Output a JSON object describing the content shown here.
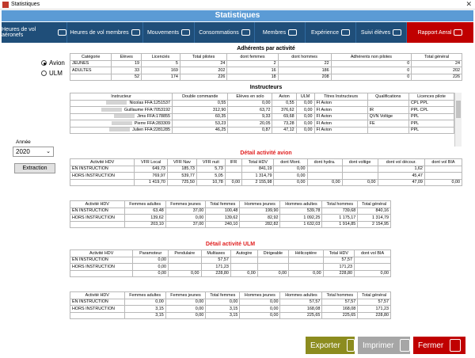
{
  "window": {
    "title": "Statistiques",
    "banner": "Statistiques"
  },
  "nav": [
    {
      "label": "Heures de vol aéronefs",
      "icon": "airplane-icon"
    },
    {
      "label": "Heures de vol membres",
      "icon": "pilot-cap-icon"
    },
    {
      "label": "Mouvements",
      "icon": "takeoff-icon"
    },
    {
      "label": "Consommations",
      "icon": "fuel-icon"
    },
    {
      "label": "Membres",
      "icon": "members-icon"
    },
    {
      "label": "Expérience",
      "icon": "boot-icon"
    },
    {
      "label": "Suivi élèves",
      "icon": "student-icon"
    },
    {
      "label": "Rapport Aeral",
      "icon": "report-icon"
    }
  ],
  "left": {
    "radio_avion": "Avion",
    "radio_ulm": "ULM",
    "year_label": "Année",
    "year_value": "2020",
    "extract_label": "Extraction"
  },
  "adherents": {
    "title": "Adhérents par activité",
    "headers": [
      "Catégorie",
      "Elèves",
      "Licenciés",
      "Total pilotes",
      "dont femmes",
      "dont hommes",
      "Adhérents non pilotes",
      "Total général"
    ],
    "rows": [
      [
        "JEUNES",
        "19",
        "5",
        "24",
        "2",
        "22",
        "0",
        "24"
      ],
      [
        "ADULTES",
        "33",
        "169",
        "202",
        "16",
        "186",
        "0",
        "202"
      ],
      [
        "",
        "52",
        "174",
        "226",
        "18",
        "208",
        "0",
        "226"
      ]
    ]
  },
  "instructeurs": {
    "title": "Instructeurs",
    "headers": [
      "Instructeur",
      "Double commande",
      "Elèves en solo",
      "Avion",
      "ULM",
      "Titres Instructeurs",
      "Qualifications",
      "Licences pilote"
    ],
    "rows": [
      [
        "Nicolas FFA:1251537",
        "0,55",
        "0,00",
        "0,55",
        "0,00",
        "FI Avion",
        "",
        "CPL  PPL"
      ],
      [
        "Guillaume FFA:7053192",
        "312,90",
        "63,72",
        "376,62",
        "0,00",
        "FI Avion",
        "IR",
        "PPL  CPL"
      ],
      [
        "Jims FFA:178855",
        "60,35",
        "9,33",
        "69,68",
        "0,00",
        "FI Avion",
        "QVN  Voltige",
        "PPL"
      ],
      [
        "Pierre FFA:283309",
        "53,23",
        "20,05",
        "73,28",
        "0,00",
        "FI Avion",
        "FE",
        "PPL"
      ],
      [
        "Julien FFA:2281285",
        "46,25",
        "0,87",
        "47,12",
        "0,00",
        "FI Avion",
        "",
        "PPL"
      ]
    ]
  },
  "avion_hdv": {
    "title": "Détail activité avion",
    "headers": [
      "Activité HDV",
      "VFR Local",
      "VFR Nav",
      "VFR nuit",
      "IFR",
      "Total HDV",
      "dont Mont.",
      "dont hydra.",
      "dont voltige",
      "dont vol décour.",
      "dont vol BIA"
    ],
    "rows": [
      [
        "EN INSTRUCTION",
        "649,73",
        "185,73",
        "5,73",
        "",
        "841,19",
        "0,00",
        "",
        "",
        "1,62",
        ""
      ],
      [
        "HORS INSTRUCTION",
        "769,97",
        "539,77",
        "5,05",
        "",
        "1 314,79",
        "0,00",
        "",
        "",
        "45,47",
        ""
      ],
      [
        "",
        "1 419,70",
        "725,50",
        "10,78",
        "0,00",
        "2 155,98",
        "0,00",
        "0,00",
        "0,00",
        "47,09",
        "0,00"
      ]
    ]
  },
  "avion_gender": {
    "headers": [
      "Activité HDV",
      "Femmes adultes",
      "Femmes jeunes",
      "Total femmes",
      "Hommes jeunes",
      "Hommes adultes",
      "Total hommes",
      "Total général"
    ],
    "rows": [
      [
        "EN INSTRUCTION",
        "63,48",
        "37,00",
        "100,48",
        "199,90",
        "539,78",
        "739,68",
        "840,16"
      ],
      [
        "HORS INSTRUCTION",
        "139,62",
        "0,00",
        "139,62",
        "82,92",
        "1 092,25",
        "1 175,17",
        "1 314,79"
      ],
      [
        "",
        "203,10",
        "37,00",
        "240,10",
        "282,82",
        "1 632,03",
        "1 914,85",
        "2 154,95"
      ]
    ]
  },
  "ulm_hdv": {
    "title": "Détail activité ULM",
    "headers": [
      "Activité HDV",
      "Paramoteur",
      "Pendulaire",
      "Multiaxes",
      "Autogire",
      "Dirigeable",
      "Hélicoptère",
      "Total HDV",
      "dont vol BIA"
    ],
    "rows": [
      [
        "EN INSTRUCTION",
        "0,00",
        "",
        "57,57",
        "",
        "",
        "",
        "57,57",
        ""
      ],
      [
        "HORS INSTRUCTION",
        "0,00",
        "",
        "171,23",
        "",
        "",
        "",
        "171,23",
        ""
      ],
      [
        "",
        "0,00",
        "0,00",
        "228,80",
        "0,00",
        "0,00",
        "0,00",
        "228,80",
        "0,00"
      ]
    ]
  },
  "ulm_gender": {
    "headers": [
      "Activité HDV",
      "Femmes adultes",
      "Femmes jeunes",
      "Total femmes",
      "Hommes jeunes",
      "Hommes adultes",
      "Total hommes",
      "Total général"
    ],
    "rows": [
      [
        "EN INSTRUCTION",
        "0,00",
        "0,00",
        "0,00",
        "0,00",
        "57,57",
        "57,57",
        "57,57"
      ],
      [
        "HORS INSTRUCTION",
        "3,15",
        "0,00",
        "3,15",
        "0,00",
        "168,08",
        "168,08",
        "171,23"
      ],
      [
        "",
        "3,15",
        "0,00",
        "3,15",
        "0,00",
        "225,65",
        "225,65",
        "228,80"
      ]
    ]
  },
  "actions": {
    "export": "Exporter",
    "print": "Imprimer",
    "close": "Fermer"
  },
  "colors": {
    "banner": "#5b9bd5",
    "nav": "#1f4e79",
    "active": "#c00000",
    "export": "#8c8c1f",
    "print": "#a6a6a6",
    "close": "#c00000"
  }
}
